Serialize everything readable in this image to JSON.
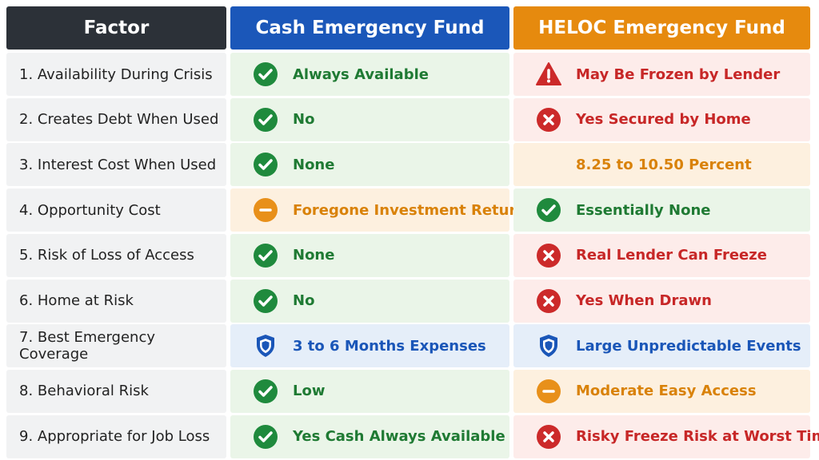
{
  "header": {
    "factor": "Factor",
    "cash": "Cash Emergency Fund",
    "heloc": "HELOC Emergency Fund"
  },
  "header_colors": {
    "factor": "#2c3138",
    "cash": "#1b57b9",
    "heloc": "#e68a0e"
  },
  "table": {
    "rows": [
      {
        "factor": "1. Availability During Crisis",
        "cash": {
          "text": "Always Available",
          "icon": "check",
          "tone": "green"
        },
        "heloc": {
          "text": "May Be Frozen by Lender",
          "icon": "warning",
          "tone": "red"
        }
      },
      {
        "factor": "2. Creates Debt When Used",
        "cash": {
          "text": "No",
          "icon": "check",
          "tone": "green"
        },
        "heloc": {
          "text": "Yes Secured by Home",
          "icon": "cross",
          "tone": "red"
        }
      },
      {
        "factor": "3. Interest Cost When Used",
        "cash": {
          "text": "None",
          "icon": "check",
          "tone": "green"
        },
        "heloc": {
          "text": "8.25 to 10.50 Percent",
          "icon": "none",
          "tone": "orange"
        }
      },
      {
        "factor": "4. Opportunity Cost",
        "cash": {
          "text": "Foregone Investment Returns",
          "icon": "minus",
          "tone": "orange"
        },
        "heloc": {
          "text": "Essentially None",
          "icon": "check",
          "tone": "green"
        }
      },
      {
        "factor": "5. Risk of Loss of Access",
        "cash": {
          "text": "None",
          "icon": "check",
          "tone": "green"
        },
        "heloc": {
          "text": "Real Lender Can Freeze",
          "icon": "cross",
          "tone": "red"
        }
      },
      {
        "factor": "6. Home at Risk",
        "cash": {
          "text": "No",
          "icon": "check",
          "tone": "green"
        },
        "heloc": {
          "text": "Yes When Drawn",
          "icon": "cross",
          "tone": "red"
        }
      },
      {
        "factor": "7. Best Emergency Coverage",
        "cash": {
          "text": "3 to 6 Months Expenses",
          "icon": "shield",
          "tone": "blue"
        },
        "heloc": {
          "text": "Large Unpredictable Events",
          "icon": "shield",
          "tone": "blue"
        }
      },
      {
        "factor": "8. Behavioral Risk",
        "cash": {
          "text": "Low",
          "icon": "check",
          "tone": "green"
        },
        "heloc": {
          "text": "Moderate Easy Access",
          "icon": "minus",
          "tone": "orange"
        }
      },
      {
        "factor": "9. Appropriate for Job Loss",
        "cash": {
          "text": "Yes Cash Always Available",
          "icon": "check",
          "tone": "green"
        },
        "heloc": {
          "text": "Risky Freeze Risk at Worst Time",
          "icon": "cross",
          "tone": "red"
        }
      }
    ]
  }
}
